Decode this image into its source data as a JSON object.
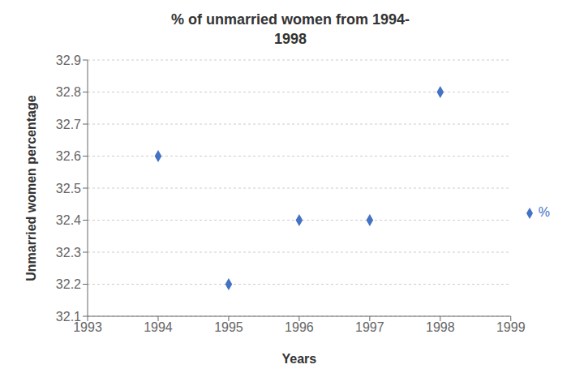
{
  "chart_data": {
    "type": "scatter",
    "title": "% of unmarried women from 1994-\n1998",
    "xlabel": "Years",
    "ylabel": "Unmarried women percentage",
    "x": [
      1994,
      1995,
      1996,
      1997,
      1998
    ],
    "series": [
      {
        "name": "%",
        "color": "#4472C4",
        "marker": "diamond",
        "values": [
          32.6,
          32.2,
          32.4,
          32.4,
          32.8
        ]
      }
    ],
    "xlim": [
      1993,
      1999
    ],
    "ylim": [
      32.1,
      32.9
    ],
    "xticks": [
      1993,
      1994,
      1995,
      1996,
      1997,
      1998,
      1999
    ],
    "yticks": [
      32.1,
      32.2,
      32.3,
      32.4,
      32.5,
      32.6,
      32.7,
      32.8,
      32.9
    ],
    "grid": "y",
    "legend": "right"
  }
}
